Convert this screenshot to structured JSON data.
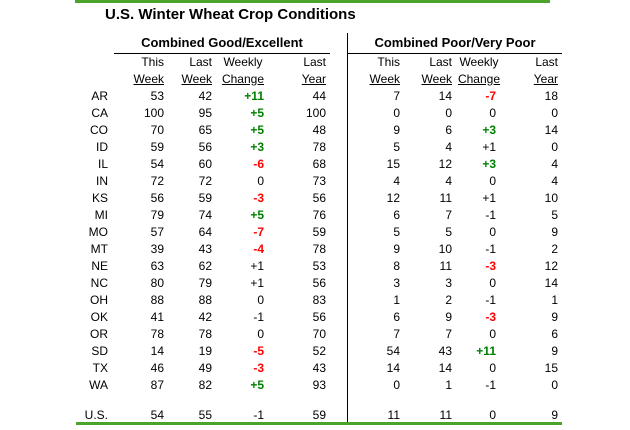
{
  "title": "U.S. Winter Wheat Crop Conditions",
  "colors": {
    "accent_green_line": "#4CA32C",
    "positive_change": "#008000",
    "negative_change": "#FF0000",
    "text": "#000000",
    "divider": "#000000"
  },
  "sections": [
    {
      "title": "Combined Good/Excellent",
      "cols": [
        {
          "line1": "This",
          "line2": "Week"
        },
        {
          "line1": "Last",
          "line2": "Week"
        },
        {
          "line1": "Weekly",
          "line2": "Change"
        },
        {
          "line1": "Last",
          "line2": "Year"
        }
      ]
    },
    {
      "title": "Combined Poor/Very Poor",
      "cols": [
        {
          "line1": "This",
          "line2": "Week"
        },
        {
          "line1": "Last",
          "line2": "Week"
        },
        {
          "line1": "Weekly",
          "line2": "Change"
        },
        {
          "line1": "Last",
          "line2": "Year"
        }
      ]
    }
  ],
  "chart_data": {
    "type": "table",
    "title": "U.S. Winter Wheat Crop Conditions",
    "section_titles": [
      "Combined Good/Excellent",
      "Combined Poor/Very Poor"
    ],
    "columns": [
      "This Week",
      "Last Week",
      "Weekly Change",
      "Last Year"
    ],
    "rows": [
      {
        "label": "AR",
        "good_excellent": [
          "53",
          "42",
          "+11",
          "44"
        ],
        "poor_very_poor": [
          "7",
          "14",
          "-7",
          "18"
        ]
      },
      {
        "label": "CA",
        "good_excellent": [
          "100",
          "95",
          "+5",
          "100"
        ],
        "poor_very_poor": [
          "0",
          "0",
          "0",
          "0"
        ]
      },
      {
        "label": "CO",
        "good_excellent": [
          "70",
          "65",
          "+5",
          "48"
        ],
        "poor_very_poor": [
          "9",
          "6",
          "+3",
          "14"
        ]
      },
      {
        "label": "ID",
        "good_excellent": [
          "59",
          "56",
          "+3",
          "78"
        ],
        "poor_very_poor": [
          "5",
          "4",
          "+1",
          "0"
        ]
      },
      {
        "label": "IL",
        "good_excellent": [
          "54",
          "60",
          "-6",
          "68"
        ],
        "poor_very_poor": [
          "15",
          "12",
          "+3",
          "4"
        ]
      },
      {
        "label": "IN",
        "good_excellent": [
          "72",
          "72",
          "0",
          "73"
        ],
        "poor_very_poor": [
          "4",
          "4",
          "0",
          "4"
        ]
      },
      {
        "label": "KS",
        "good_excellent": [
          "56",
          "59",
          "-3",
          "56"
        ],
        "poor_very_poor": [
          "12",
          "11",
          "+1",
          "10"
        ]
      },
      {
        "label": "MI",
        "good_excellent": [
          "79",
          "74",
          "+5",
          "76"
        ],
        "poor_very_poor": [
          "6",
          "7",
          "-1",
          "5"
        ]
      },
      {
        "label": "MO",
        "good_excellent": [
          "57",
          "64",
          "-7",
          "59"
        ],
        "poor_very_poor": [
          "5",
          "5",
          "0",
          "9"
        ]
      },
      {
        "label": "MT",
        "good_excellent": [
          "39",
          "43",
          "-4",
          "78"
        ],
        "poor_very_poor": [
          "9",
          "10",
          "-1",
          "2"
        ]
      },
      {
        "label": "NE",
        "good_excellent": [
          "63",
          "62",
          "+1",
          "53"
        ],
        "poor_very_poor": [
          "8",
          "11",
          "-3",
          "12"
        ]
      },
      {
        "label": "NC",
        "good_excellent": [
          "80",
          "79",
          "+1",
          "56"
        ],
        "poor_very_poor": [
          "3",
          "3",
          "0",
          "14"
        ]
      },
      {
        "label": "OH",
        "good_excellent": [
          "88",
          "88",
          "0",
          "83"
        ],
        "poor_very_poor": [
          "1",
          "2",
          "-1",
          "1"
        ]
      },
      {
        "label": "OK",
        "good_excellent": [
          "41",
          "42",
          "-1",
          "56"
        ],
        "poor_very_poor": [
          "6",
          "9",
          "-3",
          "9"
        ]
      },
      {
        "label": "OR",
        "good_excellent": [
          "78",
          "78",
          "0",
          "70"
        ],
        "poor_very_poor": [
          "7",
          "7",
          "0",
          "6"
        ]
      },
      {
        "label": "SD",
        "good_excellent": [
          "14",
          "19",
          "-5",
          "52"
        ],
        "poor_very_poor": [
          "54",
          "43",
          "+11",
          "9"
        ]
      },
      {
        "label": "TX",
        "good_excellent": [
          "46",
          "49",
          "-3",
          "43"
        ],
        "poor_very_poor": [
          "14",
          "14",
          "0",
          "15"
        ]
      },
      {
        "label": "WA",
        "good_excellent": [
          "87",
          "82",
          "+5",
          "93"
        ],
        "poor_very_poor": [
          "0",
          "1",
          "-1",
          "0"
        ]
      }
    ],
    "total": {
      "label": "U.S.",
      "good_excellent": [
        "54",
        "55",
        "-1",
        "59"
      ],
      "poor_very_poor": [
        "11",
        "11",
        "0",
        "9"
      ]
    }
  }
}
